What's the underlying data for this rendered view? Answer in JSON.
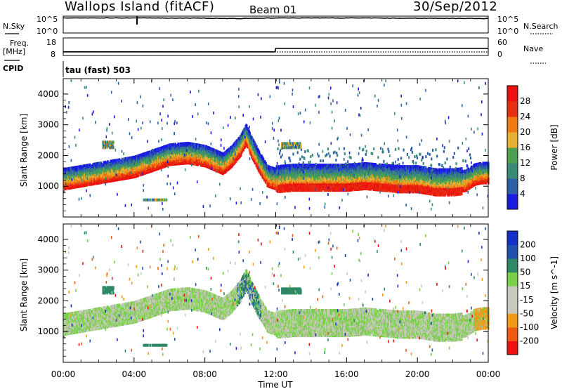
{
  "header": {
    "site": "Wallops Island (fitACF)",
    "beam": "Beam 01",
    "date": "30/Sep/2012"
  },
  "noise_panel": {
    "left_label": "N.Sky",
    "left_ticks": [
      "10^5",
      "10^0"
    ],
    "right_label": "N.Search",
    "right_ticks": [
      "10^5",
      "10^0"
    ]
  },
  "freq_panel": {
    "left_label_1": "Freq.",
    "left_label_2": "[MHz]",
    "left_ticks": [
      "18",
      "8"
    ],
    "right_label": "Nave",
    "right_ticks": [
      "60",
      "0"
    ]
  },
  "cpid": {
    "label": "CPID",
    "value": "tau (fast) 503"
  },
  "x_axis": {
    "label": "Time UT",
    "ticks": [
      "00:00",
      "04:00",
      "08:00",
      "12:00",
      "16:00",
      "20:00",
      "00:00"
    ]
  },
  "colors": {
    "power_scale": [
      "#1a1ae0",
      "#2d5fa8",
      "#3a8a78",
      "#4aa050",
      "#e8b030",
      "#f07a10",
      "#e63010",
      "#ee1010"
    ],
    "velocity_scale": [
      "#ee1111",
      "#f05a10",
      "#f29a18",
      "#c8c8bc",
      "#c8c8bc",
      "#78d048",
      "#2e8a66",
      "#2050b0",
      "#1530c8"
    ]
  },
  "chart_data": [
    {
      "type": "heatmap",
      "name_shown": "Power [dB]",
      "x_unit": "hours UT",
      "xlim": [
        0,
        24
      ],
      "ylabel": "Slant Range [km]",
      "ylim": [
        0,
        4500
      ],
      "yticks": [
        1000,
        2000,
        3000,
        4000
      ],
      "colorbar_label": "Power [dB]",
      "colorbar_ticks": [
        4,
        8,
        12,
        16,
        20,
        24,
        28
      ],
      "colorbar_range": [
        0,
        32
      ],
      "scatter_echo_band": {
        "time_hours": [
          0,
          1,
          2,
          3,
          4,
          5,
          6,
          7,
          8,
          9,
          9.5,
          10,
          10.3,
          10.6,
          11,
          11.5,
          12,
          13,
          14,
          15,
          16,
          17,
          18,
          19,
          20,
          21,
          22,
          22.7,
          23.2,
          23.6,
          24
        ],
        "range_km": [
          1100,
          1200,
          1300,
          1400,
          1500,
          1700,
          1900,
          1950,
          1850,
          1600,
          1850,
          2200,
          2550,
          2150,
          1700,
          1200,
          1100,
          1150,
          1150,
          1150,
          1150,
          1200,
          1150,
          1100,
          1100,
          1000,
          1000,
          1050,
          1250,
          1300,
          1300
        ]
      },
      "isolated_patches": [
        {
          "time_hours": [
            2.2,
            2.8
          ],
          "range_km": [
            2300,
            2500
          ]
        },
        {
          "time_hours": [
            4.5,
            5.8
          ],
          "range_km": [
            600,
            620
          ]
        },
        {
          "time_hours": [
            12.3,
            13.4
          ],
          "range_km": [
            2300,
            2450
          ]
        }
      ]
    },
    {
      "type": "heatmap",
      "name_shown": "Velocity [m s^-1]",
      "x_unit": "hours UT",
      "xlim": [
        0,
        24
      ],
      "ylabel": "Slant Range [km]",
      "ylim": [
        0,
        4500
      ],
      "yticks": [
        1000,
        2000,
        3000,
        4000
      ],
      "colorbar_label": "Velocity [m s^-1]",
      "colorbar_ticks": [
        -200,
        -100,
        -50,
        -15,
        15,
        50,
        100,
        200
      ],
      "colorbar_range": [
        -250,
        250
      ]
    },
    {
      "type": "line",
      "name_shown": "N.Sky / N.Search",
      "x_unit": "hours UT",
      "xlim": [
        0,
        24
      ],
      "series": [
        {
          "name": "N.Sky",
          "x": [
            0,
            4,
            8,
            10,
            12,
            16,
            20,
            24
          ],
          "values": [
            30000,
            30000,
            25000,
            20000,
            30000,
            30000,
            25000,
            20000
          ]
        }
      ]
    },
    {
      "type": "line",
      "name_shown": "Freq. / Nave",
      "x_unit": "hours UT",
      "xlim": [
        0,
        24
      ],
      "series": [
        {
          "name": "Freq.",
          "x": [
            0,
            11.97,
            12.0,
            24
          ],
          "values": [
            10.5,
            10.5,
            12.5,
            12.5
          ]
        },
        {
          "name": "Nave",
          "x": [
            0,
            24
          ],
          "values": [
            12,
            12
          ]
        }
      ]
    }
  ]
}
